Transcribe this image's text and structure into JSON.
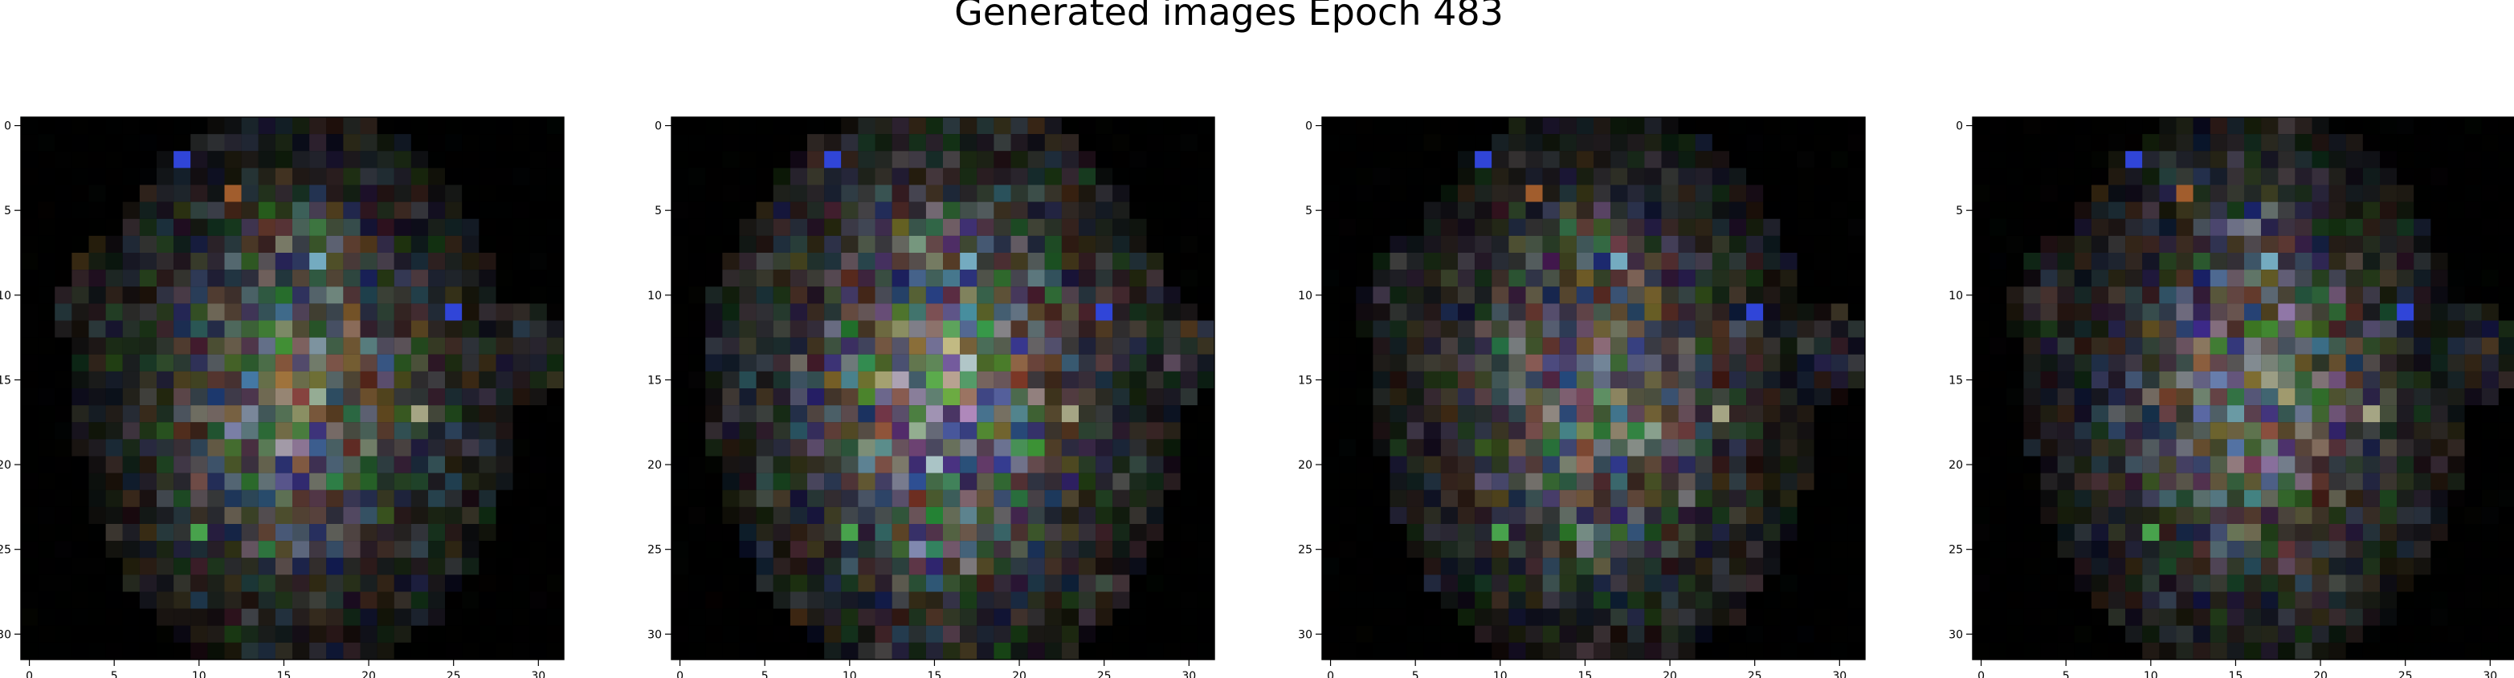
{
  "title": "Generated images Epoch 483",
  "figure": {
    "background": "#ffffff",
    "panel_count": 4
  },
  "panels": [
    {
      "name": "generated-image-1",
      "pixel_grid": 32,
      "x_ticks": [
        0,
        5,
        10,
        15,
        20,
        25,
        30
      ],
      "y_ticks": [
        0,
        5,
        10,
        15,
        20,
        25,
        30
      ],
      "tick_labels_x": [
        "0",
        "5",
        "10",
        "15",
        "20",
        "25",
        "30"
      ],
      "tick_labels_y": [
        "0",
        "5",
        "10",
        "15",
        "20",
        "25",
        "30"
      ],
      "style": "sparse-dark",
      "seed": 11
    },
    {
      "name": "generated-image-2",
      "pixel_grid": 32,
      "x_ticks": [
        0,
        5,
        10,
        15,
        20,
        25,
        30
      ],
      "y_ticks": [
        0,
        5,
        10,
        15,
        20,
        25,
        30
      ],
      "tick_labels_x": [
        "0",
        "5",
        "10",
        "15",
        "20",
        "25",
        "30"
      ],
      "tick_labels_y": [
        "0",
        "5",
        "10",
        "15",
        "20",
        "25",
        "30"
      ],
      "style": "bright-center",
      "seed": 29
    },
    {
      "name": "generated-image-3",
      "pixel_grid": 32,
      "x_ticks": [
        0,
        5,
        10,
        15,
        20,
        25,
        30
      ],
      "y_ticks": [
        0,
        5,
        10,
        15,
        20,
        25,
        30
      ],
      "tick_labels_x": [
        "0",
        "5",
        "10",
        "15",
        "20",
        "25",
        "30"
      ],
      "tick_labels_y": [
        "0",
        "5",
        "10",
        "15",
        "20",
        "25",
        "30"
      ],
      "style": "sparse-dark",
      "seed": 47
    },
    {
      "name": "generated-image-4",
      "pixel_grid": 32,
      "x_ticks": [
        0,
        5,
        10,
        15,
        20,
        25,
        30
      ],
      "y_ticks": [
        0,
        5,
        10,
        15,
        20,
        25,
        30
      ],
      "tick_labels_x": [
        "0",
        "5",
        "10",
        "15",
        "20",
        "25",
        "30"
      ],
      "tick_labels_y": [
        "0",
        "5",
        "10",
        "15",
        "20",
        "25",
        "30"
      ],
      "style": "sparse-dark",
      "seed": 63
    }
  ],
  "colors": {
    "image_background": "#000000",
    "accent_blue": "#2f43d8",
    "accent_green": "#4e9a4d",
    "accent_orange": "#b35e28",
    "accent_cyan": "#86b8c9",
    "mid_gray": "#6f7280"
  }
}
